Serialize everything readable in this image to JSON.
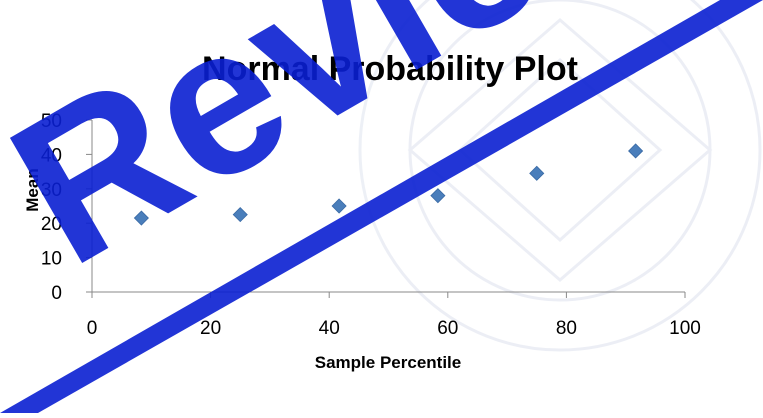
{
  "chart_data": {
    "type": "scatter",
    "title": "Normal Probability Plot",
    "xlabel": "Sample Percentile",
    "ylabel": "Mean",
    "xlim": [
      0,
      100
    ],
    "ylim": [
      0,
      50
    ],
    "x_ticks": [
      0,
      20,
      40,
      60,
      80,
      100
    ],
    "y_ticks": [
      0,
      10,
      20,
      30,
      40,
      50
    ],
    "grid": false,
    "legend": "none",
    "marker_color": "#4a7ebb",
    "series": [
      {
        "x": [
          8.33,
          25,
          41.67,
          58.33,
          75,
          91.67
        ],
        "y": [
          21.5,
          22.5,
          25,
          28,
          34.5,
          41
        ]
      }
    ]
  },
  "watermark": {
    "text": "Review",
    "color": "#0a1fd1"
  }
}
